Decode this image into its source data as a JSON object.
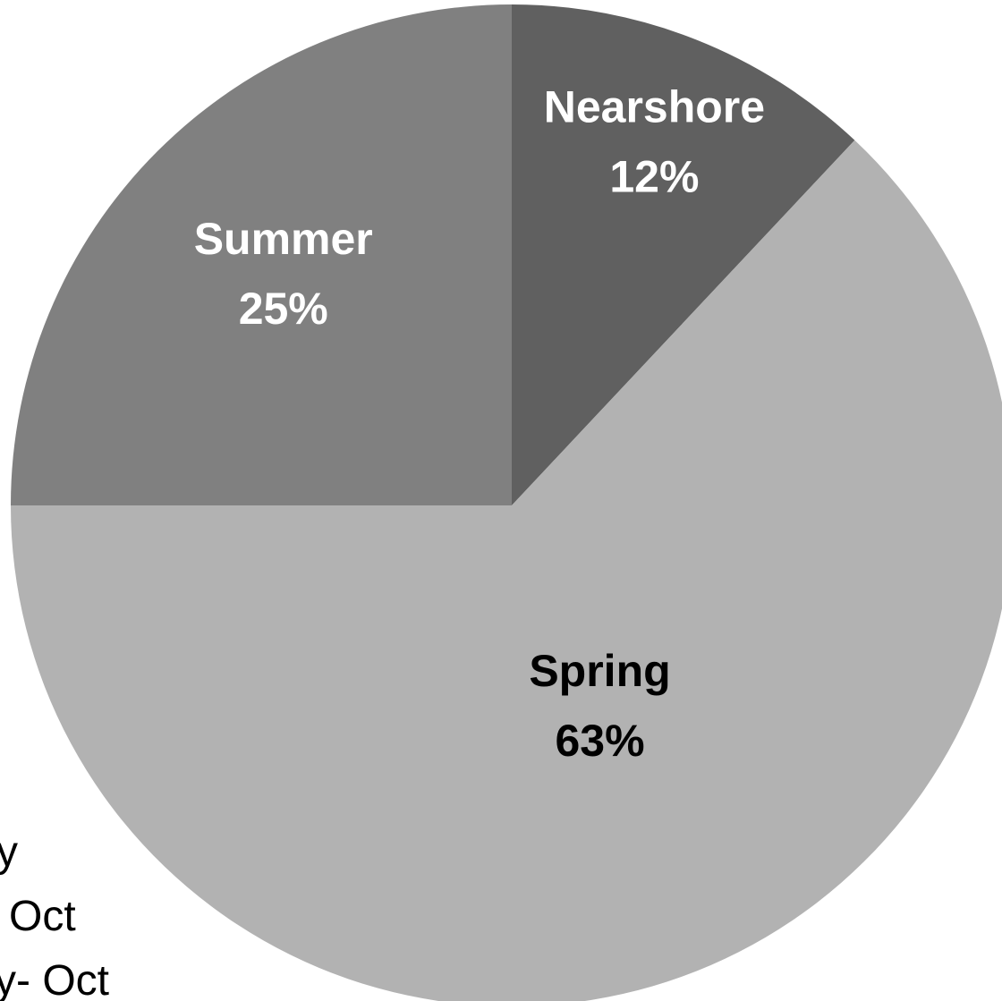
{
  "chart_data": {
    "type": "pie",
    "categories": [
      "Nearshore",
      "Spring",
      "Summer"
    ],
    "values": [
      12,
      63,
      25
    ],
    "value_labels": [
      "12%",
      "63%",
      "25%"
    ],
    "colors": [
      "#606060",
      "#b2b2b2",
      "#808080"
    ],
    "label_colors": [
      "#ffffff",
      "#000000",
      "#ffffff"
    ],
    "annotations": [
      "y",
      "Oct",
      "y- Oct"
    ]
  }
}
